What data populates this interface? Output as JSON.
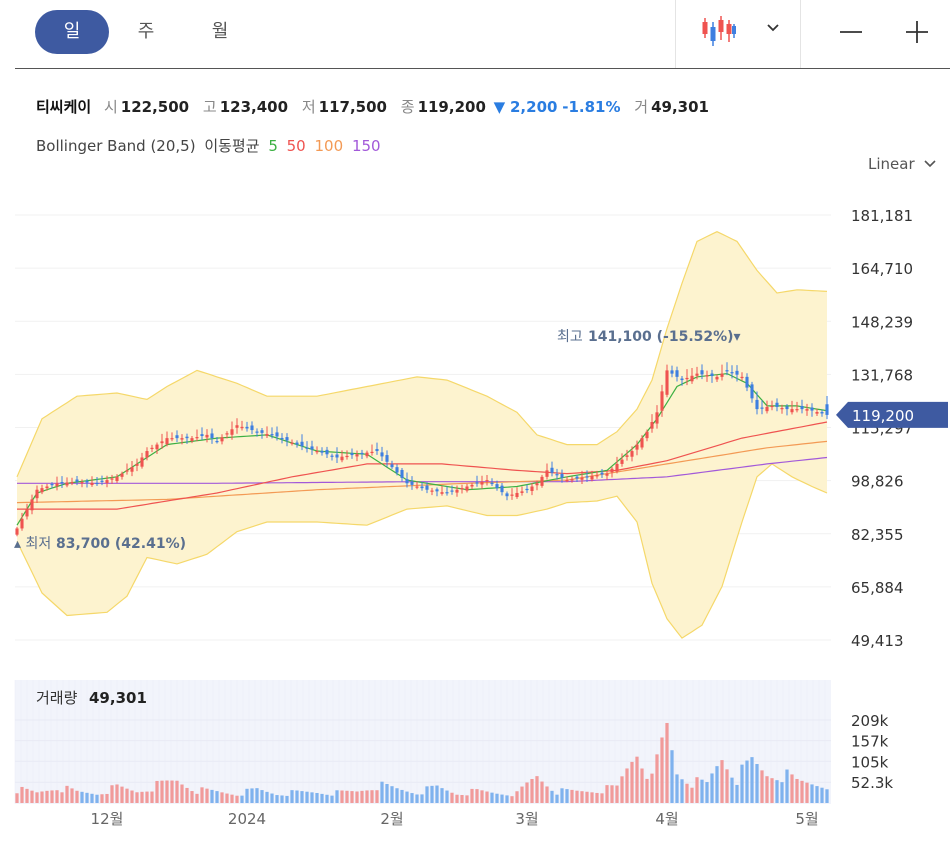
{
  "tabs": [
    {
      "label": "일",
      "active": true
    },
    {
      "label": "주",
      "active": false
    },
    {
      "label": "월",
      "active": false
    }
  ],
  "toolbar": {
    "chart_type_icon": "candlestick-icon",
    "dropdown_icon": "chevron-down-icon",
    "zoom_out_icon": "minus-icon",
    "zoom_in_icon": "plus-icon"
  },
  "summary": {
    "name": "티씨케이",
    "open_label": "시",
    "open": "122,500",
    "high_label": "고",
    "high": "123,400",
    "low_label": "저",
    "low": "117,500",
    "close_label": "종",
    "close": "119,200",
    "change": "2,200",
    "change_pct": "-1.81%",
    "volume_label": "거",
    "volume": "49,301"
  },
  "indicators": {
    "bollinger": "Bollinger Band (20,5)",
    "ma_label": "이동평균",
    "ma": [
      {
        "period": "5",
        "color": "#3cb043"
      },
      {
        "period": "50",
        "color": "#ef5350"
      },
      {
        "period": "100",
        "color": "#f39a55"
      },
      {
        "period": "150",
        "color": "#a259d9"
      }
    ]
  },
  "scale": {
    "label": "Linear"
  },
  "colors": {
    "up": "#ef5350",
    "down": "#3e7fe0",
    "band": "#fdf3cf",
    "band_line": "#f5d86a",
    "accent": "#3e5aa1"
  },
  "chart_data": {
    "type": "candlestick",
    "price_ticks": [
      "181,181",
      "164,710",
      "148,239",
      "131,768",
      "115,297",
      "98,826",
      "82,355",
      "65,884",
      "49,413"
    ],
    "price_tick_values": [
      181181,
      164710,
      148239,
      131768,
      115297,
      98826,
      82355,
      65884,
      49413
    ],
    "ylim": [
      49413,
      181181
    ],
    "current_price": "119,200",
    "current_price_value": 119200,
    "max_marker": {
      "label": "최고",
      "value": "141,100 (-15.52%)"
    },
    "min_marker": {
      "label": "최저",
      "value": "83,700 (42.41%)"
    },
    "volume_label": "거래량",
    "volume_value": "49,301",
    "volume_ticks": [
      "209k",
      "157k",
      "105k",
      "52.3k"
    ],
    "x_labels": [
      {
        "label": "12월",
        "index": 18
      },
      {
        "label": "2024",
        "index": 46
      },
      {
        "label": "2월",
        "index": 75
      },
      {
        "label": "3월",
        "index": 102
      },
      {
        "label": "4월",
        "index": 130
      },
      {
        "label": "5월",
        "index": 158
      }
    ],
    "n": 163,
    "anchors": {
      "close": [
        [
          0,
          84000
        ],
        [
          4,
          96000
        ],
        [
          8,
          98000
        ],
        [
          12,
          98500
        ],
        [
          16,
          98000
        ],
        [
          20,
          100000
        ],
        [
          24,
          104000
        ],
        [
          26,
          108000
        ],
        [
          30,
          112000
        ],
        [
          35,
          112000
        ],
        [
          38,
          113000
        ],
        [
          40,
          111000
        ],
        [
          44,
          116000
        ],
        [
          48,
          114000
        ],
        [
          52,
          112500
        ],
        [
          56,
          110000
        ],
        [
          60,
          108000
        ],
        [
          64,
          106000
        ],
        [
          68,
          107000
        ],
        [
          72,
          108000
        ],
        [
          75,
          103000
        ],
        [
          78,
          98000
        ],
        [
          82,
          96000
        ],
        [
          86,
          95000
        ],
        [
          90,
          97000
        ],
        [
          94,
          99000
        ],
        [
          98,
          94000
        ],
        [
          102,
          96000
        ],
        [
          104,
          98000
        ],
        [
          106,
          102000
        ],
        [
          110,
          99000
        ],
        [
          114,
          100000
        ],
        [
          118,
          101000
        ],
        [
          120,
          104000
        ],
        [
          123,
          108000
        ],
        [
          126,
          114000
        ],
        [
          128,
          120000
        ],
        [
          130,
          133000
        ],
        [
          133,
          130000
        ],
        [
          136,
          132000
        ],
        [
          140,
          131000
        ],
        [
          142,
          133000
        ],
        [
          145,
          131000
        ],
        [
          148,
          121000
        ],
        [
          151,
          122000
        ],
        [
          154,
          121000
        ],
        [
          158,
          121000
        ],
        [
          162,
          119200
        ]
      ],
      "ma5": [
        [
          0,
          85000
        ],
        [
          4,
          95000
        ],
        [
          10,
          98000
        ],
        [
          20,
          100000
        ],
        [
          30,
          110000
        ],
        [
          40,
          112000
        ],
        [
          50,
          113000
        ],
        [
          60,
          108000
        ],
        [
          70,
          107000
        ],
        [
          78,
          99000
        ],
        [
          90,
          96000
        ],
        [
          100,
          97000
        ],
        [
          110,
          100000
        ],
        [
          118,
          102000
        ],
        [
          124,
          110000
        ],
        [
          128,
          118000
        ],
        [
          132,
          128000
        ],
        [
          136,
          131000
        ],
        [
          142,
          132000
        ],
        [
          146,
          129000
        ],
        [
          150,
          122000
        ],
        [
          156,
          122000
        ],
        [
          162,
          120500
        ]
      ],
      "ma50": [
        [
          0,
          90000
        ],
        [
          20,
          90000
        ],
        [
          40,
          95000
        ],
        [
          55,
          100000
        ],
        [
          70,
          104000
        ],
        [
          85,
          104000
        ],
        [
          100,
          102000
        ],
        [
          110,
          101000
        ],
        [
          120,
          102000
        ],
        [
          130,
          105000
        ],
        [
          145,
          112000
        ],
        [
          162,
          117000
        ]
      ],
      "ma100": [
        [
          0,
          92000
        ],
        [
          30,
          93000
        ],
        [
          60,
          96000
        ],
        [
          90,
          98000
        ],
        [
          110,
          99000
        ],
        [
          130,
          104000
        ],
        [
          150,
          109000
        ],
        [
          162,
          111000
        ]
      ],
      "ma150": [
        [
          0,
          98000
        ],
        [
          40,
          98000
        ],
        [
          80,
          98500
        ],
        [
          110,
          98500
        ],
        [
          130,
          100000
        ],
        [
          150,
          104000
        ],
        [
          162,
          106000
        ]
      ],
      "bb_upper": [
        [
          0,
          100000
        ],
        [
          5,
          118000
        ],
        [
          12,
          125000
        ],
        [
          20,
          126000
        ],
        [
          26,
          124000
        ],
        [
          30,
          128000
        ],
        [
          36,
          133000
        ],
        [
          44,
          129000
        ],
        [
          50,
          125000
        ],
        [
          60,
          125000
        ],
        [
          70,
          128000
        ],
        [
          80,
          131000
        ],
        [
          86,
          130000
        ],
        [
          94,
          125000
        ],
        [
          100,
          120000
        ],
        [
          104,
          113000
        ],
        [
          110,
          110000
        ],
        [
          116,
          110000
        ],
        [
          120,
          114000
        ],
        [
          124,
          121000
        ],
        [
          127,
          130000
        ],
        [
          130,
          146000
        ],
        [
          133,
          160000
        ],
        [
          136,
          173000
        ],
        [
          140,
          176000
        ],
        [
          144,
          173000
        ],
        [
          148,
          164000
        ],
        [
          152,
          157000
        ],
        [
          156,
          158000
        ],
        [
          162,
          157500
        ]
      ],
      "bb_lower": [
        [
          0,
          80000
        ],
        [
          5,
          64000
        ],
        [
          10,
          57000
        ],
        [
          18,
          58000
        ],
        [
          22,
          63000
        ],
        [
          26,
          75000
        ],
        [
          32,
          73000
        ],
        [
          38,
          76000
        ],
        [
          44,
          83000
        ],
        [
          50,
          86000
        ],
        [
          60,
          86000
        ],
        [
          70,
          85000
        ],
        [
          78,
          90000
        ],
        [
          86,
          91000
        ],
        [
          94,
          88000
        ],
        [
          100,
          88000
        ],
        [
          106,
          90000
        ],
        [
          110,
          92000
        ],
        [
          116,
          92500
        ],
        [
          120,
          94000
        ],
        [
          124,
          86000
        ],
        [
          127,
          67000
        ],
        [
          130,
          56000
        ],
        [
          133,
          50000
        ],
        [
          137,
          54000
        ],
        [
          141,
          66000
        ],
        [
          145,
          86000
        ],
        [
          148,
          100000
        ],
        [
          151,
          104000
        ],
        [
          155,
          100000
        ],
        [
          159,
          97000
        ],
        [
          162,
          95000
        ]
      ],
      "volume": [
        [
          0,
          35000
        ],
        [
          4,
          26000
        ],
        [
          8,
          42000
        ],
        [
          12,
          28000
        ],
        [
          16,
          25000
        ],
        [
          20,
          40000
        ],
        [
          24,
          30000
        ],
        [
          28,
          45000
        ],
        [
          32,
          58000
        ],
        [
          36,
          33000
        ],
        [
          40,
          29000
        ],
        [
          44,
          24000
        ],
        [
          48,
          34000
        ],
        [
          52,
          24000
        ],
        [
          56,
          27000
        ],
        [
          60,
          28000
        ],
        [
          64,
          26000
        ],
        [
          68,
          30000
        ],
        [
          72,
          46000
        ],
        [
          76,
          36000
        ],
        [
          80,
          28000
        ],
        [
          84,
          40000
        ],
        [
          88,
          25000
        ],
        [
          92,
          30000
        ],
        [
          96,
          26000
        ],
        [
          100,
          24000
        ],
        [
          104,
          70000
        ],
        [
          108,
          30000
        ],
        [
          112,
          30000
        ],
        [
          116,
          33000
        ],
        [
          120,
          40000
        ],
        [
          124,
          140000
        ],
        [
          127,
          60000
        ],
        [
          130,
          195000
        ],
        [
          132,
          80000
        ],
        [
          135,
          55000
        ],
        [
          138,
          48000
        ],
        [
          141,
          120000
        ],
        [
          144,
          65000
        ],
        [
          147,
          105000
        ],
        [
          150,
          75000
        ],
        [
          153,
          75000
        ],
        [
          156,
          55000
        ],
        [
          159,
          52000
        ],
        [
          162,
          49301
        ]
      ]
    }
  }
}
